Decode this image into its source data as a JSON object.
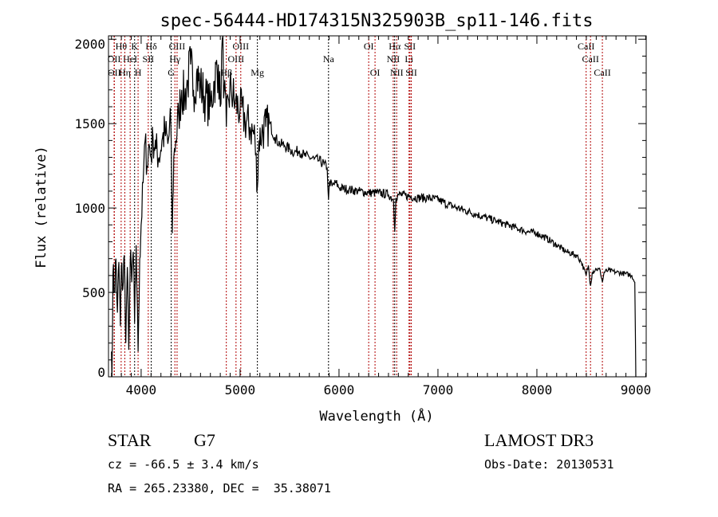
{
  "chart_data": {
    "type": "line",
    "title": "spec-56444-HD174315N325903B_sp11-146.fits",
    "xlabel": "Wavelength (Å)",
    "ylabel": "Flux (relative)",
    "xlim": [
      3670,
      9105
    ],
    "ylim": [
      0,
      2020
    ],
    "xticks": [
      4000,
      5000,
      6000,
      7000,
      8000,
      9000
    ],
    "yticks": [
      0,
      500,
      1000,
      1500,
      2000
    ],
    "grid": false,
    "series": [
      {
        "name": "flux",
        "x": [
          3700,
          3705,
          3715,
          3730,
          3745,
          3760,
          3775,
          3790,
          3800,
          3815,
          3830,
          3845,
          3860,
          3875,
          3890,
          3905,
          3920,
          3934,
          3950,
          3969,
          3985,
          4000,
          4020,
          4040,
          4060,
          4080,
          4100,
          4120,
          4150,
          4180,
          4210,
          4240,
          4270,
          4300,
          4304,
          4315,
          4330,
          4350,
          4380,
          4410,
          4440,
          4470,
          4500,
          4530,
          4560,
          4600,
          4650,
          4700,
          4740,
          4780,
          4800,
          4820,
          4840,
          4861,
          4880,
          4910,
          4950,
          5000,
          5050,
          5100,
          5150,
          5175,
          5190,
          5220,
          5260,
          5300,
          5350,
          5400,
          5450,
          5500,
          5550,
          5600,
          5650,
          5700,
          5750,
          5800,
          5850,
          5880,
          5894,
          5905,
          5930,
          5970,
          6000,
          6100,
          6200,
          6300,
          6400,
          6500,
          6550,
          6563,
          6575,
          6600,
          6700,
          6800,
          6900,
          7000,
          7100,
          7200,
          7300,
          7400,
          7500,
          7600,
          7700,
          7800,
          7900,
          8000,
          8100,
          8200,
          8300,
          8400,
          8450,
          8498,
          8520,
          8542,
          8560,
          8600,
          8640,
          8662,
          8680,
          8720,
          8800,
          8900,
          8960,
          8990,
          9000
        ],
        "y": [
          150,
          0,
          620,
          500,
          700,
          380,
          680,
          300,
          650,
          520,
          720,
          200,
          650,
          160,
          700,
          560,
          740,
          320,
          780,
          150,
          700,
          900,
          1150,
          1400,
          1250,
          1380,
          1300,
          1420,
          1350,
          1300,
          1400,
          1450,
          1380,
          1500,
          1400,
          850,
          1300,
          1400,
          1550,
          1700,
          1650,
          1750,
          1850,
          1700,
          1800,
          1720,
          1650,
          1600,
          1750,
          1850,
          1600,
          2000,
          1700,
          1480,
          1650,
          1700,
          1620,
          1580,
          1520,
          1480,
          1420,
          1120,
          1400,
          1450,
          1480,
          1500,
          1420,
          1380,
          1370,
          1350,
          1330,
          1340,
          1310,
          1300,
          1290,
          1280,
          1260,
          1240,
          1050,
          1160,
          1130,
          1150,
          1120,
          1110,
          1100,
          1090,
          1090,
          1080,
          1050,
          860,
          1060,
          1080,
          1070,
          1060,
          1060,
          1050,
          1020,
          1000,
          980,
          960,
          940,
          920,
          900,
          880,
          860,
          850,
          820,
          780,
          740,
          720,
          680,
          600,
          660,
          540,
          620,
          640,
          630,
          560,
          620,
          630,
          620,
          610,
          600,
          560,
          0
        ]
      }
    ],
    "line_markers": [
      {
        "label": "Hθ",
        "wavelength": 3798,
        "row": 1,
        "color": "#b00000"
      },
      {
        "label": "K",
        "wavelength": 3934,
        "row": 1,
        "color": "#000000"
      },
      {
        "label": "Hδ",
        "wavelength": 4102,
        "row": 1,
        "color": "#000000"
      },
      {
        "label": "OIII",
        "wavelength": 4363,
        "row": 1,
        "color": "#b00000"
      },
      {
        "label": "OIII",
        "wavelength": 5007,
        "row": 1,
        "color": "#b00000"
      },
      {
        "label": "OI",
        "wavelength": 6300,
        "row": 1,
        "color": "#b00000"
      },
      {
        "label": "Hα",
        "wavelength": 6563,
        "row": 1,
        "color": "#000000"
      },
      {
        "label": "SII",
        "wavelength": 6717,
        "row": 1,
        "color": "#b00000"
      },
      {
        "label": "CaII",
        "wavelength": 8498,
        "row": 1,
        "color": "#b00000"
      },
      {
        "label": "OII",
        "wavelength": 3727,
        "row": 2,
        "color": "#b00000"
      },
      {
        "label": "HeI",
        "wavelength": 3889,
        "row": 2,
        "color": "#b00000"
      },
      {
        "label": "SII",
        "wavelength": 4072,
        "row": 2,
        "color": "#b00000"
      },
      {
        "label": "Hγ",
        "wavelength": 4341,
        "row": 2,
        "color": "#b00000"
      },
      {
        "label": "OIII",
        "wavelength": 4959,
        "row": 2,
        "color": "#b00000"
      },
      {
        "label": "Na",
        "wavelength": 5894,
        "row": 2,
        "color": "#000000"
      },
      {
        "label": "NII",
        "wavelength": 6548,
        "row": 2,
        "color": "#b00000"
      },
      {
        "label": "Li",
        "wavelength": 6708,
        "row": 2,
        "color": "#b00000"
      },
      {
        "label": "CaII",
        "wavelength": 8542,
        "row": 2,
        "color": "#b00000"
      },
      {
        "label": "OII",
        "wavelength": 3729,
        "row": 3,
        "color": "#b00000"
      },
      {
        "label": "Hη",
        "wavelength": 3835,
        "row": 3,
        "color": "#b00000"
      },
      {
        "label": "H",
        "wavelength": 3969,
        "row": 3,
        "color": "#b00000"
      },
      {
        "label": "G",
        "wavelength": 4304,
        "row": 3,
        "color": "#000000"
      },
      {
        "label": "Hβ",
        "wavelength": 4861,
        "row": 3,
        "color": "#b00000"
      },
      {
        "label": "Mg",
        "wavelength": 5175,
        "row": 3,
        "color": "#000000"
      },
      {
        "label": "OI",
        "wavelength": 6364,
        "row": 3,
        "color": "#b00000"
      },
      {
        "label": "NII",
        "wavelength": 6583,
        "row": 3,
        "color": "#b00000"
      },
      {
        "label": "SII",
        "wavelength": 6731,
        "row": 3,
        "color": "#b00000"
      },
      {
        "label": "CaII",
        "wavelength": 8662,
        "row": 3,
        "color": "#b00000"
      }
    ]
  },
  "info": {
    "object_class": "STAR",
    "subclass": "G7",
    "cz": "cz = -66.5 ± 3.4 km/s",
    "coords": "RA = 265.23380, DEC =  35.38071",
    "survey": "LAMOST DR3",
    "obs_date": "Obs-Date: 20130531"
  }
}
